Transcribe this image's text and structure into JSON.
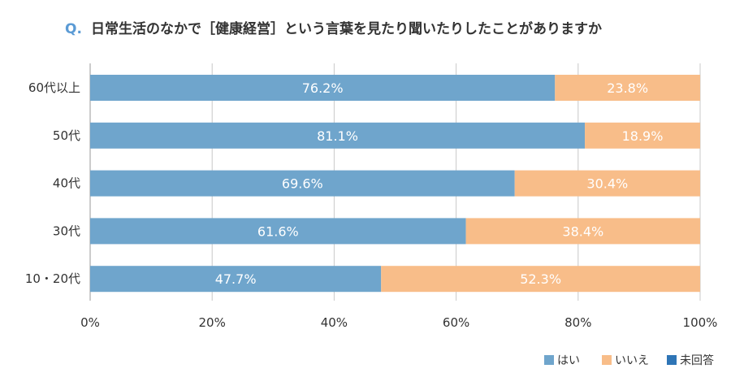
{
  "chart_data": {
    "type": "bar",
    "orientation": "horizontal",
    "stacked": true,
    "title_prefix": "Q.",
    "title": "日常生活のなかで［健康経営］という言葉を見たり聞いたりしたことがありますか",
    "categories": [
      "60代以上",
      "50代",
      "40代",
      "30代",
      "10・20代"
    ],
    "series": [
      {
        "name": "はい",
        "color": "#6fa5cc",
        "values": [
          76.2,
          81.1,
          69.6,
          61.6,
          47.7
        ],
        "labels": [
          "76.2%",
          "81.1%",
          "69.6%",
          "61.6%",
          "47.7%"
        ]
      },
      {
        "name": "いいえ",
        "color": "#f8bd89",
        "values": [
          23.8,
          18.9,
          30.4,
          38.4,
          52.3
        ],
        "labels": [
          "23.8%",
          "18.9%",
          "30.4%",
          "38.4%",
          "52.3%"
        ]
      },
      {
        "name": "未回答",
        "color": "#2e75b6",
        "values": [
          0,
          0,
          0,
          0,
          0
        ],
        "labels": [
          "",
          "",
          "",
          "",
          ""
        ]
      }
    ],
    "xlim": [
      0,
      100
    ],
    "xticks": [
      "0%",
      "20%",
      "40%",
      "60%",
      "80%",
      "100%"
    ],
    "grid": true,
    "legend_position": "bottom-right"
  }
}
